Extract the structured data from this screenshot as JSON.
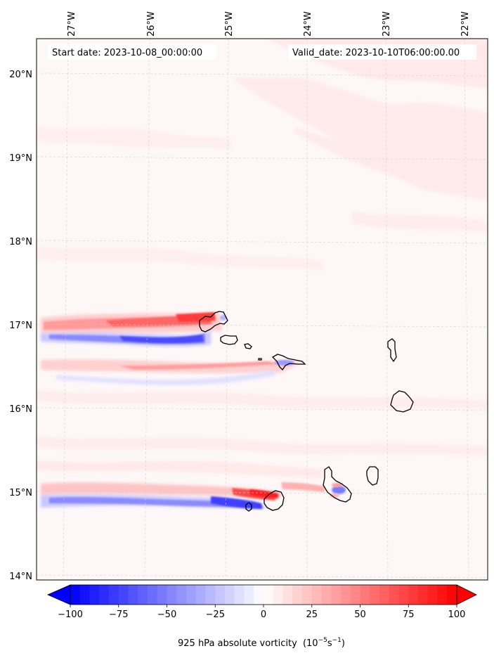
{
  "chart_data": {
    "type": "heatmap",
    "title_left": "Start date: 2023-10-08_00:00:00",
    "title_right": "Valid_date: 2023-10-10T06:00:00.00",
    "x_ticks": [
      "27°W",
      "26°W",
      "25°W",
      "24°W",
      "23°W",
      "22°W"
    ],
    "y_ticks": [
      "20°N",
      "19°N",
      "18°N",
      "17°N",
      "16°N",
      "15°N",
      "14°N"
    ],
    "colorbar": {
      "label": "925 hPa absolute vorticity",
      "units_prefix": "(10",
      "units_exp1": "−5",
      "units_mid": "s",
      "units_exp2": "−1",
      "units_suffix": ")",
      "range": [
        -100,
        100
      ],
      "tick_values": [
        -100,
        -75,
        -50,
        -25,
        0,
        25,
        50,
        75,
        100
      ],
      "tick_labels": [
        "−100",
        "−75",
        "−50",
        "−25",
        "0",
        "25",
        "50",
        "75",
        "100"
      ],
      "colormap": "bwr",
      "extend": "both"
    },
    "colors": {
      "negative": "#0000ff",
      "positive": "#ff0000",
      "neutral": "#ffffff",
      "coast": "#000000"
    }
  }
}
